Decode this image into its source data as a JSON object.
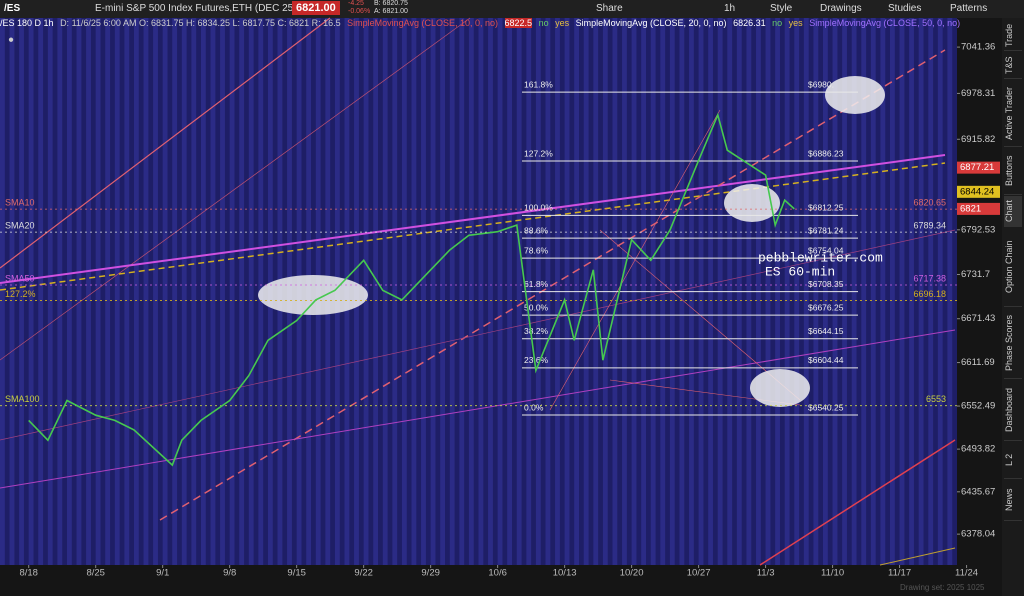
{
  "toolbar": {
    "symbol": "/ES",
    "description": "E-mini S&P 500 Index Futures,ETH (DEC 25)",
    "last": "6821.00",
    "change": "-4.25",
    "change_pct": "-0.06%",
    "bid": "B: 6820.75",
    "ask": "A: 6821.00",
    "buttons": [
      "Share",
      "1h",
      "Style",
      "Drawings",
      "Studies",
      "Patterns"
    ]
  },
  "info_bar": {
    "chart_id": "/ES 180 D 1h",
    "ohlc": "D: 11/6/25 6:00 AM  O: 6831.75  H: 6834.25  L: 6817.75  C: 6821  R: 16.5",
    "studies": [
      {
        "name": "SimpleMovingAvg (CLOSE, 10, 0, no)",
        "value": "6822.5",
        "flags": [
          "no",
          "yes"
        ]
      },
      {
        "name": "SimpleMovingAvg (CLOSE, 20, 0, no)",
        "value": "6826.31",
        "flags": [
          "no",
          "yes"
        ]
      },
      {
        "name": "SimpleMovingAvg (CLOSE, 50, 0, no)"
      }
    ]
  },
  "side_tabs": [
    "Trade",
    "T&S",
    "Active Trader",
    "Buttons",
    "Chart",
    "Option Chain",
    "Phase Scores",
    "Dashboard",
    "L 2",
    "News"
  ],
  "chart_data": {
    "type": "line",
    "x": [
      "8/18",
      "8/20",
      "8/22",
      "8/25",
      "8/27",
      "8/29",
      "9/2",
      "9/3",
      "9/5",
      "9/8",
      "9/10",
      "9/12",
      "9/15",
      "9/17",
      "9/19",
      "9/22",
      "9/24",
      "9/26",
      "9/29",
      "10/1",
      "10/3",
      "10/6",
      "10/8",
      "10/10",
      "10/13",
      "10/14",
      "10/16",
      "10/17",
      "10/20",
      "10/22",
      "10/24",
      "10/27",
      "10/29",
      "10/30",
      "11/3",
      "11/4",
      "11/5",
      "11/6"
    ],
    "values": [
      6533,
      6506,
      6560,
      6540,
      6533,
      6520,
      6472,
      6506,
      6533,
      6560,
      6594,
      6642,
      6669,
      6697,
      6710,
      6751,
      6710,
      6697,
      6738,
      6765,
      6785,
      6790,
      6799,
      6601,
      6697,
      6642,
      6738,
      6615,
      6779,
      6751,
      6792,
      6887,
      6949,
      6901,
      6867,
      6799,
      6833,
      6821
    ],
    "color": "#46c84f",
    "xlim": [
      "8/15",
      "11/23"
    ],
    "xticks": [
      "8/18",
      "8/25",
      "9/1",
      "9/8",
      "9/15",
      "9/22",
      "9/29",
      "10/6",
      "10/13",
      "10/20",
      "10/27",
      "11/3",
      "11/10",
      "11/17",
      "11/24"
    ],
    "ylim": [
      6336,
      7081
    ],
    "yticks": [
      7041.36,
      6978.31,
      6915.82,
      6792.53,
      6731.7,
      6671.43,
      6611.69,
      6552.49,
      6493.82,
      6435.67,
      6378.04
    ],
    "fib_levels": [
      {
        "ratio": "161.8%",
        "value": 6980,
        "label": "$6980."
      },
      {
        "ratio": "127.2%",
        "value": 6886.23,
        "label": "$6886.23"
      },
      {
        "ratio": "100.0%",
        "value": 6812.25,
        "label": "$6812.25"
      },
      {
        "ratio": "88.6%",
        "value": 6781.24,
        "label": "$6781.24"
      },
      {
        "ratio": "78.6%",
        "value": 6754.04,
        "label": "$6754.04"
      },
      {
        "ratio": "61.8%",
        "value": 6708.35,
        "label": "$6708.35"
      },
      {
        "ratio": "50.0%",
        "value": 6676.25,
        "label": "$6676.25"
      },
      {
        "ratio": "38.2%",
        "value": 6644.15,
        "label": "$6644.15"
      },
      {
        "ratio": "23.6%",
        "value": 6604.44,
        "label": "$6604.44"
      },
      {
        "ratio": "0.0%",
        "value": 6540.25,
        "label": "$6540.25"
      }
    ],
    "levels": [
      {
        "name": "SMA10",
        "value": 6820.65,
        "color": "#e06a6a"
      },
      {
        "name": "SMA20",
        "value": 6789.34,
        "color": "#dddddd"
      },
      {
        "name": "SMA50",
        "value": 6717.38,
        "color": "#d060e0"
      },
      {
        "name": "127.2%",
        "value": 6696.18,
        "color": "#d4b020"
      },
      {
        "name": "SMA100",
        "value": 6553,
        "color": "#c8d040"
      }
    ],
    "price_markers": [
      {
        "value": 6877.21,
        "color": "#d83a3a"
      },
      {
        "value": 6844.24,
        "color": "#e0c020"
      },
      {
        "value": 6821,
        "color": "#d83a3a"
      }
    ],
    "annotations": [
      "pebblewriter.com",
      "ES 60-min"
    ],
    "footer": "Drawing set: 2025 1025"
  }
}
